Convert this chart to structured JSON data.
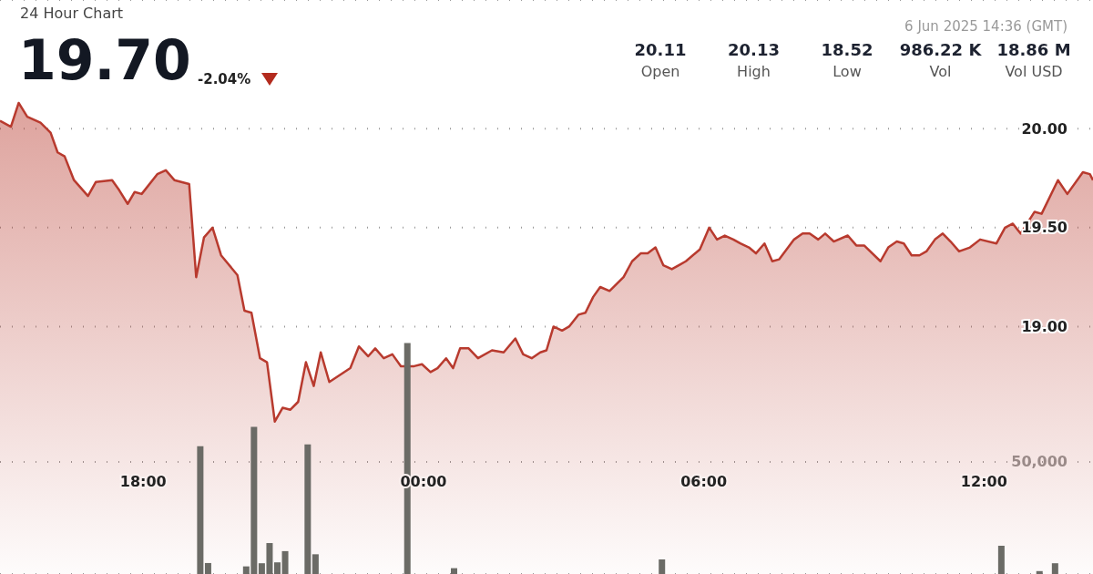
{
  "chart_data": {
    "type": "area",
    "title": "24 Hour Chart",
    "subtitle": "19.70",
    "annotations": [
      "-2.04%",
      "6 Jun 2025 14:36 (GMT)",
      "20.11",
      "Open",
      "20.13",
      "High",
      "18.52",
      "Low",
      "986.22 K",
      "Vol",
      "18.86 M",
      "Vol USD"
    ],
    "series": [
      {
        "color": "#b83a2e",
        "x": [
          "2025-06-05T14:56",
          "2025-06-05T15:10",
          "2025-06-05T15:20",
          "2025-06-05T15:31",
          "2025-06-05T15:48",
          "2025-06-05T16:01",
          "2025-06-05T16:10",
          "2025-06-05T16:19",
          "2025-06-05T16:31",
          "2025-06-05T16:49",
          "2025-06-05T16:59",
          "2025-06-05T17:20",
          "2025-06-05T17:29",
          "2025-06-05T17:40",
          "2025-06-05T17:49",
          "2025-06-05T17:58",
          "2025-06-05T18:18",
          "2025-06-05T18:29",
          "2025-06-05T18:40",
          "2025-06-05T18:59",
          "2025-06-05T19:08",
          "2025-06-05T19:18",
          "2025-06-05T19:29",
          "2025-06-05T19:40",
          "2025-06-05T20:01",
          "2025-06-05T20:10",
          "2025-06-05T20:19",
          "2025-06-05T20:30",
          "2025-06-05T20:39",
          "2025-06-05T20:49",
          "2025-06-05T20:59",
          "2025-06-05T21:09",
          "2025-06-05T21:19",
          "2025-06-05T21:29",
          "2025-06-05T21:39",
          "2025-06-05T21:48",
          "2025-06-05T21:59",
          "2025-06-05T22:26",
          "2025-06-05T22:37",
          "2025-06-05T22:49",
          "2025-06-05T22:58",
          "2025-06-05T23:09",
          "2025-06-05T23:20",
          "2025-06-05T23:31",
          "2025-06-05T23:48",
          "2025-06-05T23:58",
          "2025-06-06T00:09",
          "2025-06-06T00:18",
          "2025-06-06T00:29",
          "2025-06-06T00:38",
          "2025-06-06T00:47",
          "2025-06-06T00:58",
          "2025-06-06T01:10",
          "2025-06-06T01:28",
          "2025-06-06T01:43",
          "2025-06-06T01:58",
          "2025-06-06T02:08",
          "2025-06-06T02:19",
          "2025-06-06T02:30",
          "2025-06-06T02:38",
          "2025-06-06T02:47",
          "2025-06-06T02:58",
          "2025-06-06T03:07",
          "2025-06-06T03:19",
          "2025-06-06T03:28",
          "2025-06-06T03:38",
          "2025-06-06T03:47",
          "2025-06-06T03:59",
          "2025-06-06T04:17",
          "2025-06-06T04:28",
          "2025-06-06T04:39",
          "2025-06-06T04:48",
          "2025-06-06T04:58",
          "2025-06-06T05:08",
          "2025-06-06T05:19",
          "2025-06-06T05:28",
          "2025-06-06T05:37",
          "2025-06-06T05:55",
          "2025-06-06T06:07",
          "2025-06-06T06:17",
          "2025-06-06T06:27",
          "2025-06-06T06:38",
          "2025-06-06T06:47",
          "2025-06-06T06:58",
          "2025-06-06T07:07",
          "2025-06-06T07:18",
          "2025-06-06T07:28",
          "2025-06-06T07:37",
          "2025-06-06T07:56",
          "2025-06-06T08:07",
          "2025-06-06T08:16",
          "2025-06-06T08:27",
          "2025-06-06T08:36",
          "2025-06-06T08:47",
          "2025-06-06T09:05",
          "2025-06-06T09:16",
          "2025-06-06T09:26",
          "2025-06-06T09:47",
          "2025-06-06T09:57",
          "2025-06-06T10:08",
          "2025-06-06T10:17",
          "2025-06-06T10:27",
          "2025-06-06T10:37",
          "2025-06-06T10:46",
          "2025-06-06T10:57",
          "2025-06-06T11:07",
          "2025-06-06T11:17",
          "2025-06-06T11:28",
          "2025-06-06T11:42",
          "2025-06-06T11:55",
          "2025-06-06T12:16",
          "2025-06-06T12:27",
          "2025-06-06T12:37",
          "2025-06-06T12:47",
          "2025-06-06T13:05",
          "2025-06-06T13:14",
          "2025-06-06T13:35",
          "2025-06-06T13:47",
          "2025-06-06T14:07",
          "2025-06-06T14:16",
          "2025-06-06T14:20"
        ],
        "values": [
          20.04,
          20.01,
          20.13,
          20.06,
          20.03,
          19.98,
          19.88,
          19.86,
          19.74,
          19.66,
          19.73,
          19.74,
          19.69,
          19.62,
          19.68,
          19.67,
          19.77,
          19.79,
          19.74,
          19.72,
          19.25,
          19.45,
          19.5,
          19.36,
          19.26,
          19.08,
          19.07,
          18.84,
          18.82,
          18.52,
          18.59,
          18.58,
          18.62,
          18.82,
          18.7,
          18.87,
          18.72,
          18.79,
          18.9,
          18.85,
          18.89,
          18.84,
          18.86,
          18.8,
          18.8,
          18.81,
          18.77,
          18.79,
          18.84,
          18.79,
          18.89,
          18.89,
          18.84,
          18.88,
          18.87,
          18.94,
          18.86,
          18.84,
          18.87,
          18.88,
          19.0,
          18.98,
          19.0,
          19.06,
          19.07,
          19.15,
          19.2,
          19.18,
          19.25,
          19.33,
          19.37,
          19.37,
          19.4,
          19.31,
          19.29,
          19.31,
          19.33,
          19.39,
          19.5,
          19.44,
          19.46,
          19.44,
          19.42,
          19.4,
          19.37,
          19.42,
          19.33,
          19.34,
          19.44,
          19.47,
          19.47,
          19.44,
          19.47,
          19.43,
          19.46,
          19.41,
          19.41,
          19.33,
          19.4,
          19.43,
          19.42,
          19.36,
          19.36,
          19.38,
          19.44,
          19.47,
          19.43,
          19.38,
          19.4,
          19.44,
          19.42,
          19.5,
          19.52,
          19.47,
          19.58,
          19.57,
          19.74,
          19.67,
          19.78,
          19.77,
          19.74
        ]
      },
      {
        "type": "bar",
        "axis": "y2",
        "color": "#6b6b66",
        "x": [
          "2025-06-05T19:13",
          "2025-06-05T19:23",
          "2025-06-05T20:12",
          "2025-06-05T20:22",
          "2025-06-05T20:32",
          "2025-06-05T20:42",
          "2025-06-05T20:52",
          "2025-06-05T21:02",
          "2025-06-05T21:31",
          "2025-06-05T21:41",
          "2025-06-05T23:39",
          "2025-06-06T00:39",
          "2025-06-06T05:06",
          "2025-06-06T12:22",
          "2025-06-06T13:11",
          "2025-06-06T13:31"
        ],
        "values": [
          57000,
          4900,
          3400,
          65600,
          4800,
          13800,
          5200,
          10200,
          57800,
          8800,
          103000,
          2600,
          6500,
          12600,
          1300,
          4800
        ]
      }
    ],
    "xlim": [
      "2025-06-05T14:56",
      "2025-06-06T14:20"
    ],
    "xticks": [
      {
        "value": "2025-06-05T18:00",
        "label": "18:00"
      },
      {
        "value": "2025-06-06T00:00",
        "label": "00:00"
      },
      {
        "value": "2025-06-06T06:00",
        "label": "06:00"
      },
      {
        "value": "2025-06-06T12:00",
        "label": "12:00"
      }
    ],
    "ylim": [
      17.75,
      20.65
    ],
    "yticks": [
      {
        "value": 19,
        "label": "19.00"
      },
      {
        "value": 19.5,
        "label": "19.50"
      },
      {
        "value": 20,
        "label": "20.00"
      }
    ],
    "y2lim": [
      0,
      256000
    ],
    "y2ticks": [
      {
        "value": 50000,
        "label": "50,000"
      }
    ],
    "grid": "y",
    "legend": false
  }
}
